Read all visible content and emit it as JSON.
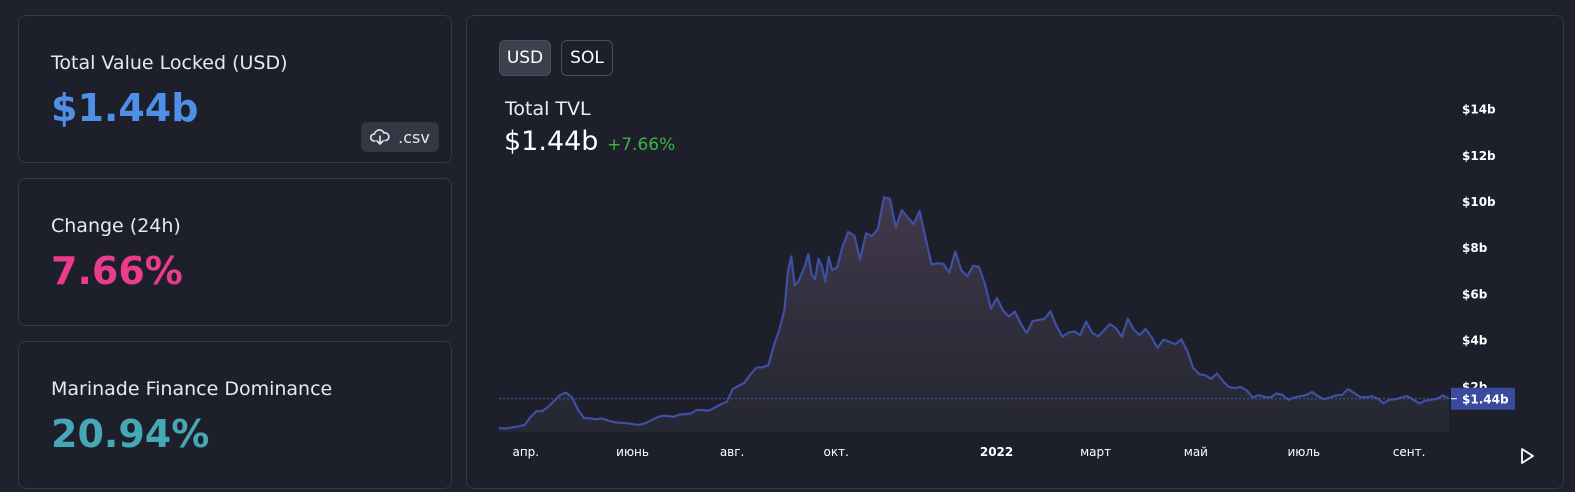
{
  "cards": {
    "tvl": {
      "label": "Total Value Locked (USD)",
      "value": "$1.44b",
      "color": "#4f8fe8",
      "csv_label": ".csv"
    },
    "change": {
      "label": "Change (24h)",
      "value": "7.66%",
      "color": "#ea3b8c"
    },
    "dominance": {
      "label": "Marinade Finance Dominance",
      "value": "20.94%",
      "color": "#46a8b4"
    }
  },
  "chart_panel": {
    "toggles": [
      "USD",
      "SOL"
    ],
    "active_toggle": "USD",
    "title": "Total TVL",
    "value": "$1.44b",
    "change": "+7.66%",
    "change_color": "#3bb44a",
    "icons": {
      "download": "cloud-download-icon",
      "play": "play-icon"
    }
  },
  "chart_data": {
    "type": "area",
    "series": [
      {
        "line_color": "#3f4fa3",
        "current_value_label": "$1.44b",
        "x": [
          "2021-03-17",
          "2021-03-25",
          "2021-04-01",
          "2021-04-08",
          "2021-04-15",
          "2021-04-22",
          "2021-04-29",
          "2021-05-06",
          "2021-05-13",
          "2021-05-20",
          "2021-05-27",
          "2021-06-03",
          "2021-06-10",
          "2021-06-17",
          "2021-06-24",
          "2021-07-01",
          "2021-07-08",
          "2021-07-15",
          "2021-07-22",
          "2021-07-29",
          "2021-08-05",
          "2021-08-12",
          "2021-08-19",
          "2021-08-26",
          "2021-09-01",
          "2021-09-05",
          "2021-09-09",
          "2021-09-13",
          "2021-09-17",
          "2021-09-21",
          "2021-09-25",
          "2021-09-29",
          "2021-10-05",
          "2021-10-12",
          "2021-10-19",
          "2021-10-26",
          "2021-11-02",
          "2021-11-09",
          "2021-11-16",
          "2021-11-23",
          "2021-11-30",
          "2021-12-07",
          "2021-12-14",
          "2021-12-21",
          "2021-12-28",
          "2022-01-04",
          "2022-01-11",
          "2022-01-18",
          "2022-01-25",
          "2022-02-01",
          "2022-02-08",
          "2022-02-15",
          "2022-02-22",
          "2022-03-01",
          "2022-03-08",
          "2022-03-15",
          "2022-03-22",
          "2022-03-29",
          "2022-04-05",
          "2022-04-12",
          "2022-04-19",
          "2022-04-26",
          "2022-05-03",
          "2022-05-10",
          "2022-05-17",
          "2022-05-24",
          "2022-05-31",
          "2022-06-07",
          "2022-06-14",
          "2022-06-21",
          "2022-06-28",
          "2022-07-05",
          "2022-07-12",
          "2022-07-19",
          "2022-07-26",
          "2022-08-02",
          "2022-08-09",
          "2022-08-16",
          "2022-08-23",
          "2022-08-30",
          "2022-09-06",
          "2022-09-13",
          "2022-09-20",
          "2022-09-27"
        ],
        "values": [
          0.17,
          0.2,
          0.3,
          0.9,
          1.1,
          1.6,
          1.5,
          0.6,
          0.55,
          0.5,
          0.4,
          0.35,
          0.35,
          0.6,
          0.7,
          0.75,
          0.8,
          0.95,
          1.05,
          1.3,
          2.0,
          2.5,
          2.8,
          3.8,
          5.3,
          7.6,
          6.5,
          7.2,
          6.8,
          7.5,
          6.5,
          7.0,
          8.0,
          8.5,
          8.6,
          8.8,
          10.1,
          9.6,
          9.0,
          8.4,
          7.3,
          6.9,
          7.0,
          7.2,
          6.4,
          5.8,
          5.0,
          4.7,
          4.8,
          4.9,
          4.6,
          4.3,
          4.2,
          4.3,
          4.4,
          4.5,
          4.9,
          4.2,
          4.1,
          4.0,
          3.8,
          3.5,
          2.5,
          2.3,
          2.2,
          1.9,
          1.8,
          1.6,
          1.5,
          1.6,
          1.5,
          1.6,
          1.55,
          1.5,
          1.6,
          1.7,
          1.5,
          1.45,
          1.4,
          1.5,
          1.4,
          1.35,
          1.44,
          1.44
        ]
      }
    ],
    "ylim": [
      0,
      15
    ],
    "y_ticks": [
      "$2b",
      "$4b",
      "$6b",
      "$8b",
      "$10b",
      "$12b",
      "$14b"
    ],
    "x_ticks": [
      "апр.",
      "июнь",
      "авг.",
      "окт.",
      "2022",
      "март",
      "май",
      "июль",
      "сент."
    ],
    "grid": false,
    "legend": "none"
  }
}
